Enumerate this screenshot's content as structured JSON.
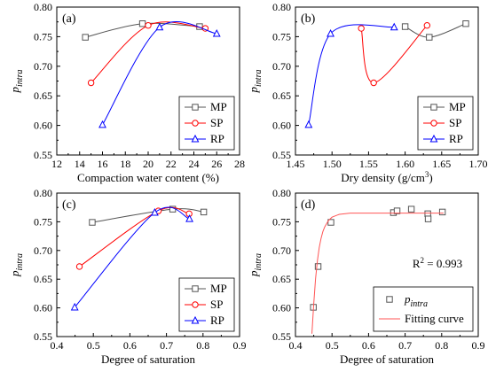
{
  "chart_data": [
    {
      "type": "line",
      "panel_label": "(a)",
      "xlabel": "Compaction water content (%)",
      "ylabel": {
        "main": "p",
        "sub": "intra"
      },
      "xlim": [
        12,
        28
      ],
      "ylim": [
        0.55,
        0.8
      ],
      "xticks": [
        "12",
        "14",
        "16",
        "18",
        "20",
        "22",
        "24",
        "26",
        "28"
      ],
      "yticks": [
        "0.55",
        "0.60",
        "0.65",
        "0.70",
        "0.75",
        "0.80"
      ],
      "legend_position": "bottom-right",
      "series": [
        {
          "name": "MP",
          "color": "#555555",
          "marker": "square",
          "x": [
            14.5,
            19.5,
            24.5
          ],
          "y": [
            0.749,
            0.772,
            0.767
          ],
          "curve": "smooth"
        },
        {
          "name": "SP",
          "color": "#ff0000",
          "marker": "circle",
          "x": [
            15.0,
            20.0,
            25.0
          ],
          "y": [
            0.672,
            0.769,
            0.764
          ],
          "curve": "smooth"
        },
        {
          "name": "RP",
          "color": "#0000ff",
          "marker": "triangle",
          "x": [
            16.0,
            21.0,
            26.0
          ],
          "y": [
            0.601,
            0.766,
            0.755
          ],
          "curve": "smooth"
        }
      ]
    },
    {
      "type": "line",
      "panel_label": "(b)",
      "xlabel": {
        "main": "Dry density (g/cm",
        "sup": "3",
        "end": ")"
      },
      "ylabel": {
        "main": "p",
        "sub": "intra"
      },
      "xlim": [
        1.45,
        1.7
      ],
      "ylim": [
        0.55,
        0.8
      ],
      "xticks": [
        "1.45",
        "1.50",
        "1.55",
        "1.60",
        "1.65",
        "1.70"
      ],
      "yticks": [
        "0.55",
        "0.60",
        "0.65",
        "0.70",
        "0.75",
        "0.80"
      ],
      "legend_position": "bottom-right",
      "series": [
        {
          "name": "MP",
          "color": "#555555",
          "marker": "square",
          "x": [
            1.633,
            1.6,
            1.683
          ],
          "y": [
            0.749,
            0.767,
            0.772
          ],
          "curve": "smooth"
        },
        {
          "name": "SP",
          "color": "#ff0000",
          "marker": "circle",
          "x": [
            1.557,
            1.54,
            1.63
          ],
          "y": [
            0.672,
            0.764,
            0.769
          ],
          "curve": "smooth"
        },
        {
          "name": "RP",
          "color": "#0000ff",
          "marker": "triangle",
          "x": [
            1.468,
            1.498,
            1.585
          ],
          "y": [
            0.601,
            0.755,
            0.766
          ],
          "curve": "smooth"
        }
      ]
    },
    {
      "type": "line",
      "panel_label": "(c)",
      "xlabel": "Degree of saturation",
      "ylabel": {
        "main": "p",
        "sub": "intra"
      },
      "xlim": [
        0.4,
        0.9
      ],
      "ylim": [
        0.55,
        0.8
      ],
      "xticks": [
        "0.4",
        "0.5",
        "0.6",
        "0.7",
        "0.8",
        "0.9"
      ],
      "yticks": [
        "0.55",
        "0.60",
        "0.65",
        "0.70",
        "0.75",
        "0.80"
      ],
      "legend_position": "bottom-right",
      "series": [
        {
          "name": "MP",
          "color": "#555555",
          "marker": "square",
          "x": [
            0.497,
            0.717,
            0.802
          ],
          "y": [
            0.749,
            0.772,
            0.767
          ],
          "curve": "smooth"
        },
        {
          "name": "SP",
          "color": "#ff0000",
          "marker": "circle",
          "x": [
            0.462,
            0.678,
            0.762
          ],
          "y": [
            0.672,
            0.769,
            0.764
          ],
          "curve": "smooth"
        },
        {
          "name": "RP",
          "color": "#0000ff",
          "marker": "triangle",
          "x": [
            0.449,
            0.668,
            0.763
          ],
          "y": [
            0.601,
            0.766,
            0.755
          ],
          "curve": "smooth"
        }
      ]
    },
    {
      "type": "scatter",
      "panel_label": "(d)",
      "xlabel": "Degree of saturation",
      "ylabel": {
        "main": "p",
        "sub": "intra"
      },
      "xlim": [
        0.4,
        0.9
      ],
      "ylim": [
        0.55,
        0.8
      ],
      "xticks": [
        "0.4",
        "0.5",
        "0.6",
        "0.7",
        "0.8",
        "0.9"
      ],
      "yticks": [
        "0.55",
        "0.60",
        "0.65",
        "0.70",
        "0.75",
        "0.80"
      ],
      "legend_position": "bottom-right",
      "annotation": {
        "text": "R",
        "sup": "2",
        "rest": " = 0.993"
      },
      "series": [
        {
          "name": {
            "main": "p",
            "sub": "intra"
          },
          "color": "#555555",
          "marker": "square",
          "line": false,
          "x": [
            0.449,
            0.462,
            0.497,
            0.668,
            0.678,
            0.717,
            0.762,
            0.763,
            0.802
          ],
          "y": [
            0.601,
            0.672,
            0.749,
            0.766,
            0.769,
            0.772,
            0.764,
            0.755,
            0.767
          ]
        },
        {
          "name": "Fitting curve",
          "color": "#ff5555",
          "marker": "none",
          "line": true,
          "x": [
            0.445,
            0.45,
            0.455,
            0.46,
            0.465,
            0.47,
            0.475,
            0.48,
            0.49,
            0.5,
            0.52,
            0.55,
            0.6,
            0.65,
            0.7,
            0.75,
            0.8,
            0.805
          ],
          "y": [
            0.555,
            0.607,
            0.651,
            0.682,
            0.705,
            0.721,
            0.733,
            0.741,
            0.752,
            0.758,
            0.763,
            0.765,
            0.765,
            0.765,
            0.765,
            0.765,
            0.765,
            0.765
          ]
        }
      ]
    }
  ]
}
